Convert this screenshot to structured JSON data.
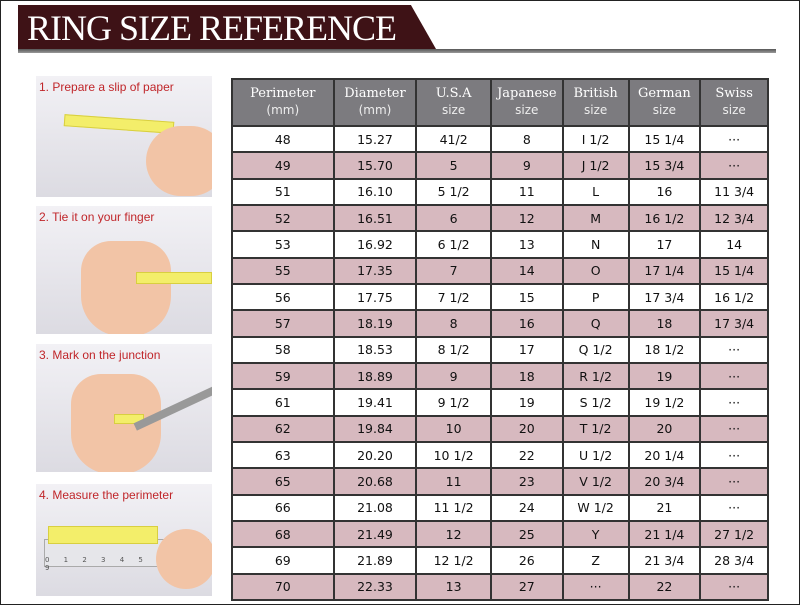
{
  "title": "RING SIZE REFERENCE",
  "steps": [
    "1. Prepare a slip of paper",
    "2. Tie it on your finger",
    "3. Mark on the junction",
    "4. Measure the perimeter"
  ],
  "ruler_digits": "0 1 2 3 4 5 6 7 8 9",
  "headers": [
    [
      "Perimeter",
      "(mm)"
    ],
    [
      "Diameter",
      "(mm)"
    ],
    [
      "U.S.A",
      "size"
    ],
    [
      "Japanese",
      "size"
    ],
    [
      "British",
      "size"
    ],
    [
      "German",
      "size"
    ],
    [
      "Swiss",
      "size"
    ]
  ],
  "rows": [
    [
      "48",
      "15.27",
      "41/2",
      "8",
      "I 1/2",
      "15 1/4",
      "···"
    ],
    [
      "49",
      "15.70",
      "5",
      "9",
      "J 1/2",
      "15 3/4",
      "···"
    ],
    [
      "51",
      "16.10",
      "5 1/2",
      "11",
      "L",
      "16",
      "11 3/4"
    ],
    [
      "52",
      "16.51",
      "6",
      "12",
      "M",
      "16 1/2",
      "12 3/4"
    ],
    [
      "53",
      "16.92",
      "6 1/2",
      "13",
      "N",
      "17",
      "14"
    ],
    [
      "55",
      "17.35",
      "7",
      "14",
      "O",
      "17 1/4",
      "15 1/4"
    ],
    [
      "56",
      "17.75",
      "7 1/2",
      "15",
      "P",
      "17 3/4",
      "16 1/2"
    ],
    [
      "57",
      "18.19",
      "8",
      "16",
      "Q",
      "18",
      "17 3/4"
    ],
    [
      "58",
      "18.53",
      "8 1/2",
      "17",
      "Q  1/2",
      "18 1/2",
      "···"
    ],
    [
      "59",
      "18.89",
      "9",
      "18",
      "R 1/2",
      "19",
      "···"
    ],
    [
      "61",
      "19.41",
      "9 1/2",
      "19",
      "S 1/2",
      "19 1/2",
      "···"
    ],
    [
      "62",
      "19.84",
      "10",
      "20",
      "T 1/2",
      "20",
      "···"
    ],
    [
      "63",
      "20.20",
      "10 1/2",
      "22",
      "U 1/2",
      "20 1/4",
      "···"
    ],
    [
      "65",
      "20.68",
      "11",
      "23",
      "V 1/2",
      "20 3/4",
      "···"
    ],
    [
      "66",
      "21.08",
      "11 1/2",
      "24",
      "W 1/2",
      "21",
      "···"
    ],
    [
      "68",
      "21.49",
      "12",
      "25",
      "Y",
      "21 1/4",
      "27 1/2"
    ],
    [
      "69",
      "21.89",
      "12 1/2",
      "26",
      "Z",
      "21 3/4",
      "28 3/4"
    ],
    [
      "70",
      "22.33",
      "13",
      "27",
      "···",
      "22",
      "···"
    ]
  ],
  "colors": {
    "banner": "#3e1216",
    "header_bg": "#7c7b7f",
    "alt_row": "#d7b9bf",
    "step_label": "#c0262a"
  }
}
